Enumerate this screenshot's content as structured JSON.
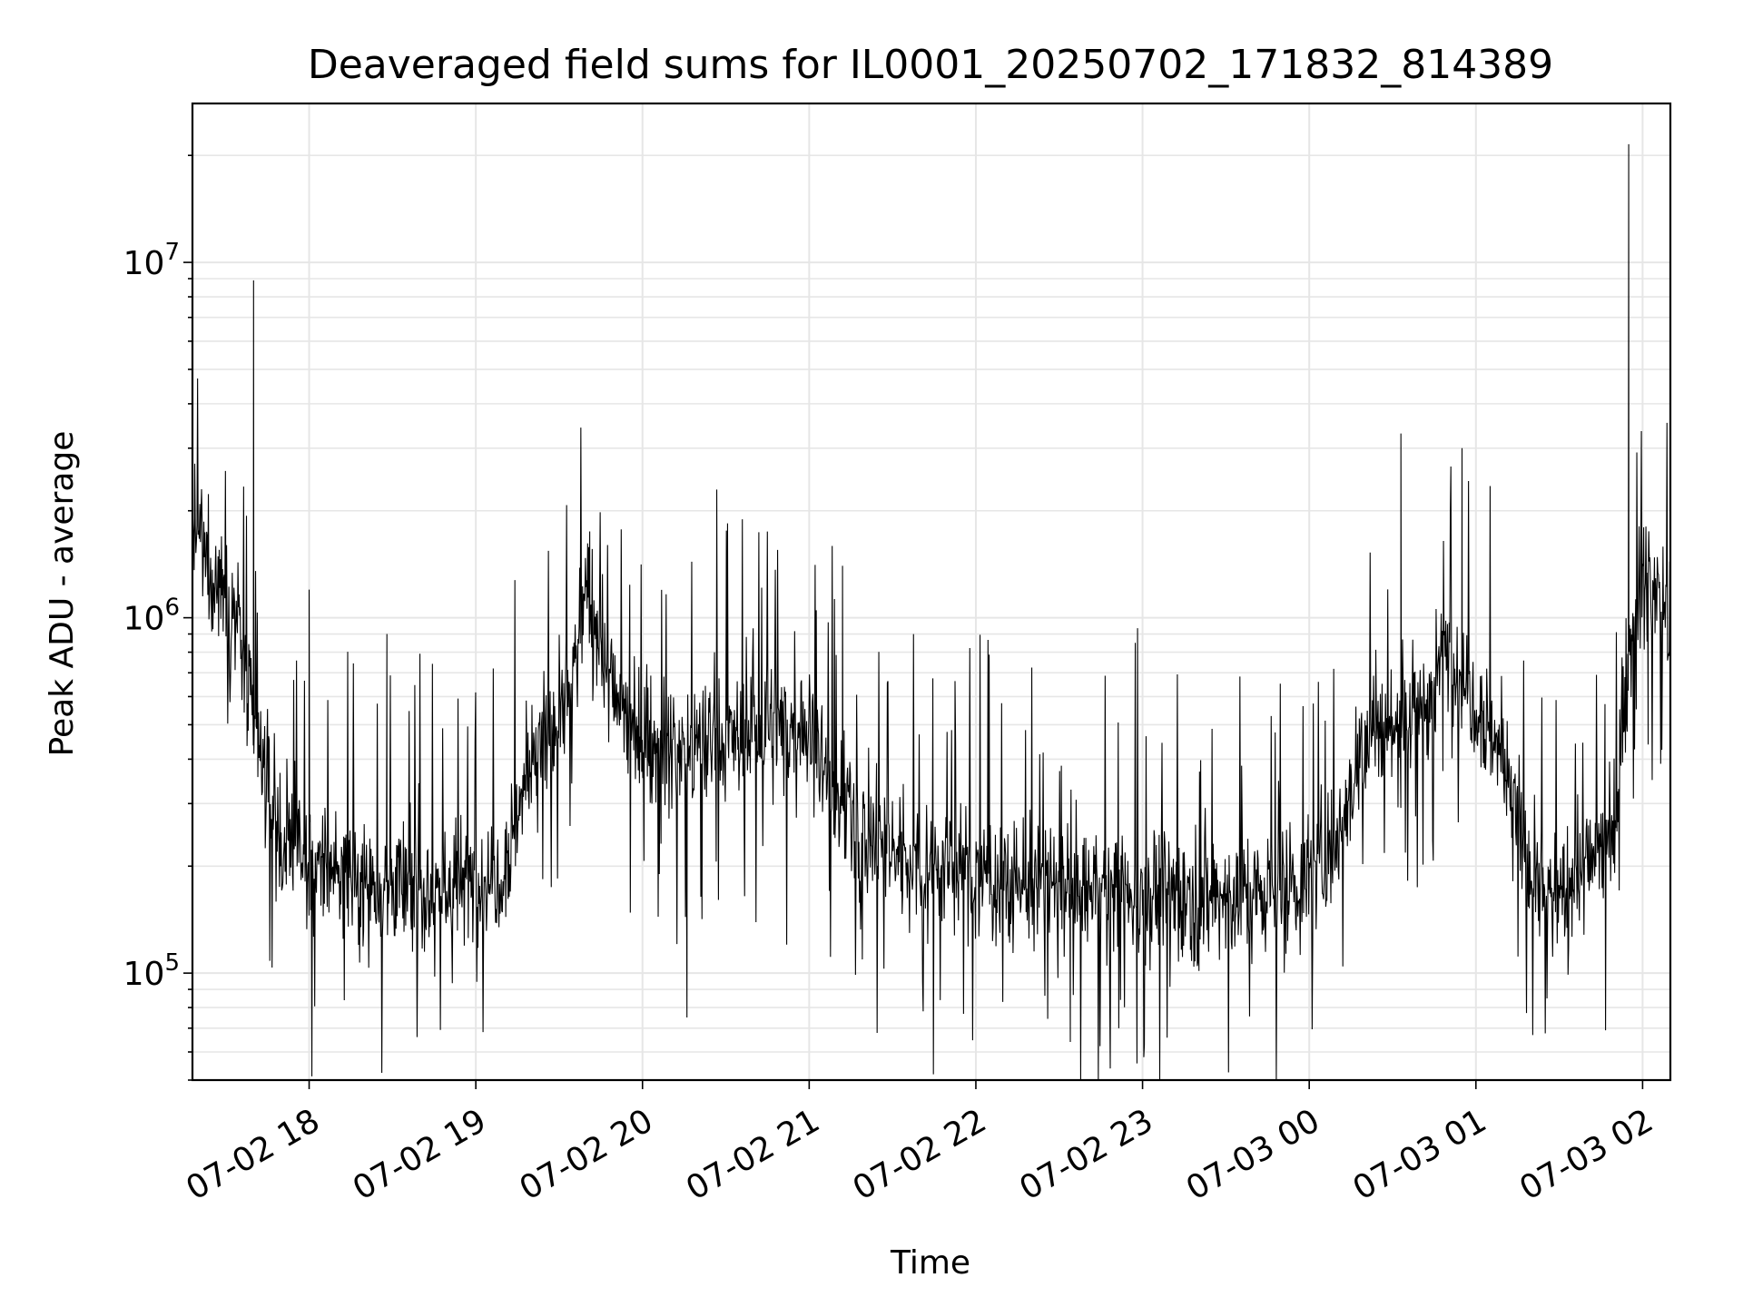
{
  "chart_data": {
    "type": "line",
    "title": "Deaveraged field sums for IL0001_20250702_171832_814389",
    "xlabel": "Time",
    "ylabel": "Peak ADU - average",
    "y_scale": "log",
    "ylim": [
      50000,
      28000000
    ],
    "xlim": [
      "2025-07-02 17:18",
      "2025-07-03 02:10"
    ],
    "x_ticks": [
      {
        "value": "2025-07-02 18:00",
        "label": "07-02 18"
      },
      {
        "value": "2025-07-02 19:00",
        "label": "07-02 19"
      },
      {
        "value": "2025-07-02 20:00",
        "label": "07-02 20"
      },
      {
        "value": "2025-07-02 21:00",
        "label": "07-02 21"
      },
      {
        "value": "2025-07-02 22:00",
        "label": "07-02 22"
      },
      {
        "value": "2025-07-02 23:00",
        "label": "07-02 23"
      },
      {
        "value": "2025-07-03 00:00",
        "label": "07-03 00"
      },
      {
        "value": "2025-07-03 01:00",
        "label": "07-03 01"
      },
      {
        "value": "2025-07-03 02:00",
        "label": "07-03 02"
      }
    ],
    "y_ticks": [
      {
        "value": 100000,
        "base": "10",
        "exp": "5"
      },
      {
        "value": 1000000,
        "base": "10",
        "exp": "6"
      },
      {
        "value": 10000000,
        "base": "10",
        "exp": "7"
      }
    ],
    "grid": true,
    "line_color": "#000000",
    "grid_color": "#e6e6e6",
    "series": [
      {
        "x": [
          "2025-07-02 17:18",
          "2025-07-02 17:22",
          "2025-07-02 17:26",
          "2025-07-02 17:30",
          "2025-07-02 17:34",
          "2025-07-02 17:38",
          "2025-07-02 17:42",
          "2025-07-02 17:46",
          "2025-07-02 17:50",
          "2025-07-02 17:54",
          "2025-07-02 18:00",
          "2025-07-02 18:10",
          "2025-07-02 18:20",
          "2025-07-02 18:30",
          "2025-07-02 18:40",
          "2025-07-02 18:50",
          "2025-07-02 19:00",
          "2025-07-02 19:10",
          "2025-07-02 19:20",
          "2025-07-02 19:30",
          "2025-07-02 19:35",
          "2025-07-02 19:40",
          "2025-07-02 19:45",
          "2025-07-02 19:50",
          "2025-07-02 20:00",
          "2025-07-02 20:15",
          "2025-07-02 20:30",
          "2025-07-02 20:45",
          "2025-07-02 21:00",
          "2025-07-02 21:10",
          "2025-07-02 21:20",
          "2025-07-02 21:30",
          "2025-07-02 21:45",
          "2025-07-02 22:00",
          "2025-07-02 22:15",
          "2025-07-02 22:30",
          "2025-07-02 22:45",
          "2025-07-02 23:00",
          "2025-07-02 23:15",
          "2025-07-02 23:30",
          "2025-07-02 23:45",
          "2025-07-03 00:00",
          "2025-07-03 00:10",
          "2025-07-03 00:20",
          "2025-07-03 00:30",
          "2025-07-03 00:40",
          "2025-07-03 00:50",
          "2025-07-03 01:00",
          "2025-07-03 01:10",
          "2025-07-03 01:20",
          "2025-07-03 01:30",
          "2025-07-03 01:40",
          "2025-07-03 01:50",
          "2025-07-03 01:55",
          "2025-07-03 02:00",
          "2025-07-03 02:05",
          "2025-07-03 02:10"
        ],
        "values": [
          1800000,
          1500000,
          1300000,
          1200000,
          1000000,
          600000,
          400000,
          300000,
          250000,
          220000,
          190000,
          200000,
          180000,
          175000,
          170000,
          175000,
          180000,
          200000,
          400000,
          500000,
          700000,
          1200000,
          800000,
          600000,
          450000,
          420000,
          450000,
          480000,
          500000,
          300000,
          250000,
          220000,
          200000,
          190000,
          180000,
          175000,
          170000,
          170000,
          165000,
          165000,
          170000,
          180000,
          250000,
          450000,
          500000,
          550000,
          800000,
          600000,
          400000,
          180000,
          160000,
          200000,
          260000,
          800000,
          1300000,
          1200000,
          1000000
        ]
      }
    ],
    "spikes": [
      {
        "x": "2025-07-02 17:40",
        "y": 8900000
      },
      {
        "x": "2025-07-02 18:00",
        "y": 1200000
      },
      {
        "x": "2025-07-02 18:28",
        "y": 900000
      },
      {
        "x": "2025-07-02 19:41",
        "y": 1750000
      },
      {
        "x": "2025-07-02 21:12",
        "y": 1400000
      },
      {
        "x": "2025-07-03 00:33",
        "y": 3300000
      },
      {
        "x": "2025-07-03 00:55",
        "y": 3000000
      },
      {
        "x": "2025-07-03 01:55",
        "y": 21500000
      },
      {
        "x": "2025-07-03 02:02",
        "y": 440000
      },
      {
        "x": "2025-07-02 22:34",
        "y": 64000
      },
      {
        "x": "2025-07-02 20:16",
        "y": 75000
      }
    ]
  }
}
